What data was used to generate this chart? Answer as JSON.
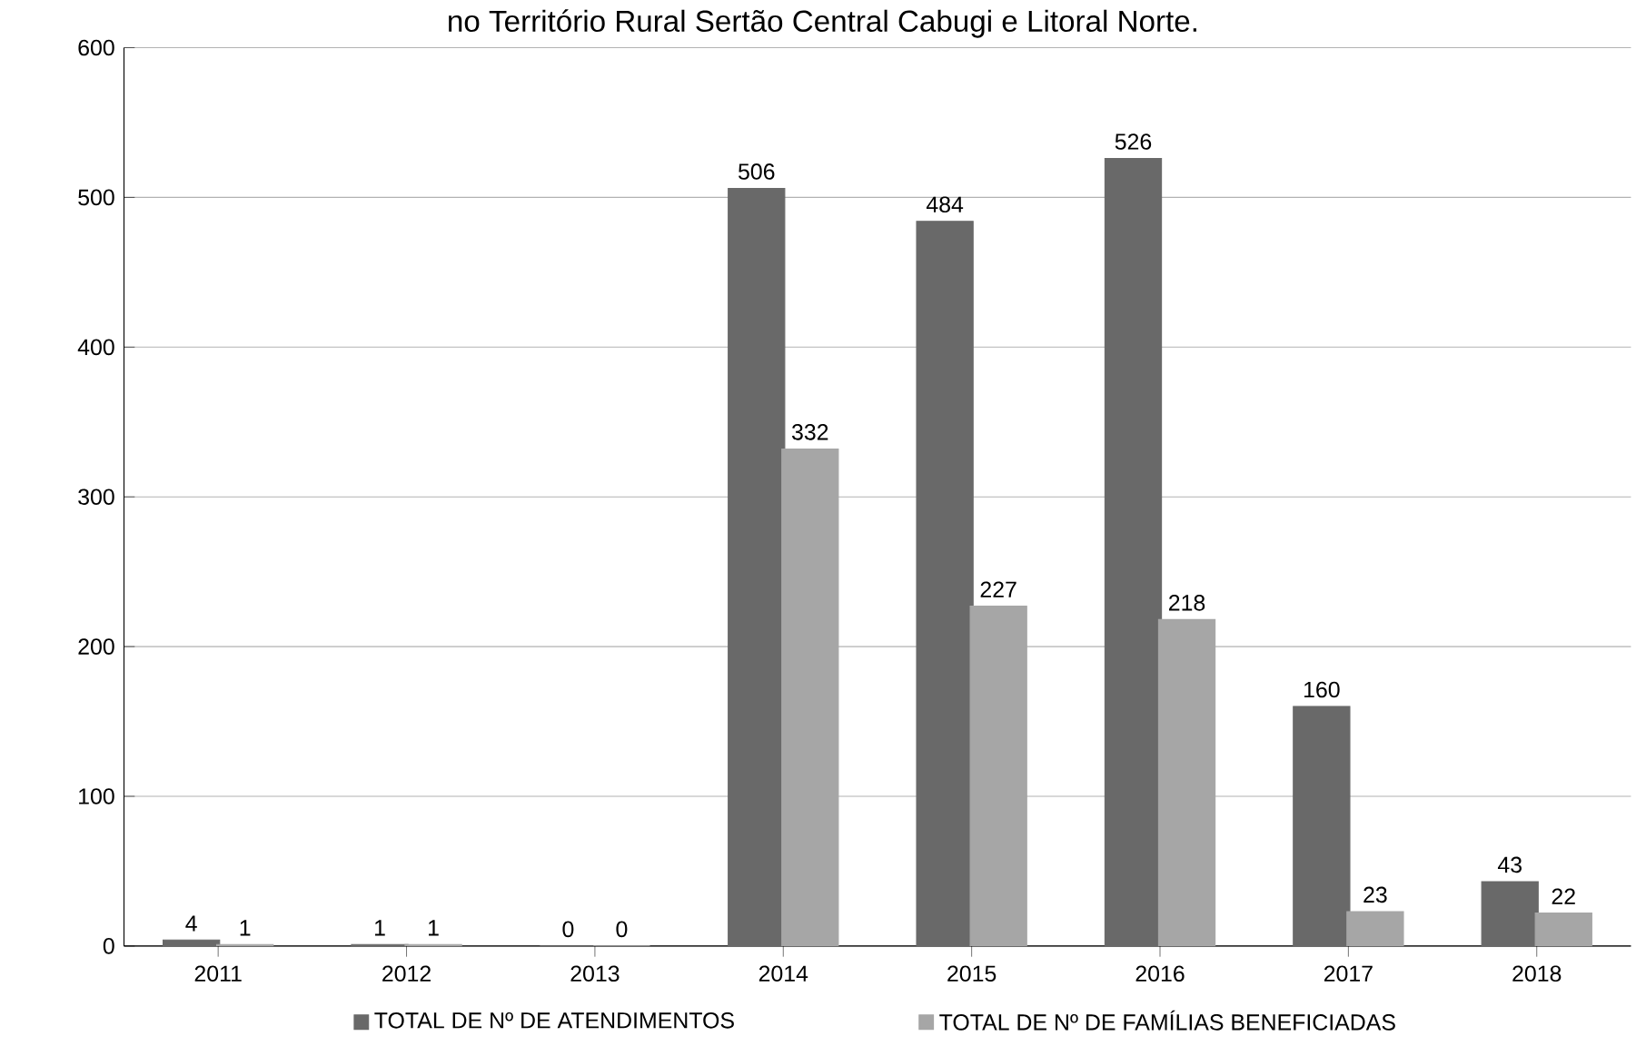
{
  "chart_data": {
    "type": "bar",
    "title": "no Território Rural Sertão Central Cabugi e Litoral Norte.",
    "categories": [
      "2011",
      "2012",
      "2013",
      "2014",
      "2015",
      "2016",
      "2017",
      "2018"
    ],
    "series": [
      {
        "name": "TOTAL DE Nº DE ATENDIMENTOS",
        "color": "#696969",
        "values": [
          4,
          1,
          0,
          506,
          484,
          526,
          160,
          43
        ]
      },
      {
        "name": "TOTAL DE Nº DE FAMÍLIAS BENEFICIADAS",
        "color": "#a6a6a6",
        "values": [
          1,
          1,
          0,
          332,
          227,
          218,
          23,
          22
        ]
      }
    ],
    "ylim": [
      0,
      600
    ],
    "yticks": [
      0,
      100,
      200,
      300,
      400,
      500,
      600
    ],
    "grid": "y",
    "data_labels": true,
    "legend": "bottom"
  }
}
